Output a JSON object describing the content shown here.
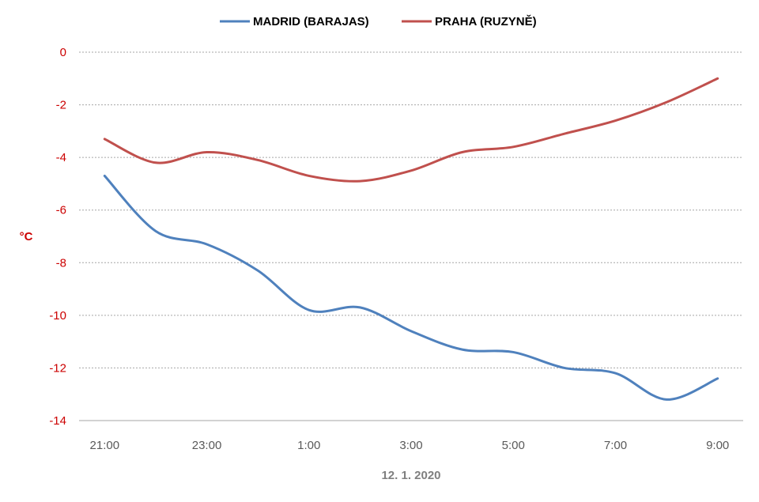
{
  "chart_data": {
    "type": "line",
    "x": [
      "21:00",
      "22:00",
      "23:00",
      "0:00",
      "1:00",
      "2:00",
      "3:00",
      "4:00",
      "5:00",
      "6:00",
      "7:00",
      "8:00",
      "9:00"
    ],
    "x_tick_labels": [
      "21:00",
      "23:00",
      "1:00",
      "3:00",
      "5:00",
      "7:00",
      "9:00"
    ],
    "xlabel": "12. 1. 2020",
    "ylabel": "°C",
    "ylim": [
      -14,
      0
    ],
    "y_ticks": [
      0,
      -2,
      -4,
      -6,
      -8,
      -10,
      -12,
      -14
    ],
    "grid": true,
    "legend_position": "top",
    "series": [
      {
        "name": "MADRID (BARAJAS)",
        "color": "#4f81bd",
        "values": [
          -4.7,
          -6.8,
          -7.3,
          -8.3,
          -9.8,
          -9.7,
          -10.6,
          -11.3,
          -11.4,
          -12.0,
          -12.2,
          -13.2,
          -12.4
        ]
      },
      {
        "name": "PRAHA (RUZYNĚ)",
        "color": "#c0504d",
        "values": [
          -3.3,
          -4.2,
          -3.8,
          -4.1,
          -4.7,
          -4.9,
          -4.5,
          -3.8,
          -3.6,
          -3.1,
          -2.6,
          -1.9,
          -1.0
        ]
      }
    ]
  }
}
